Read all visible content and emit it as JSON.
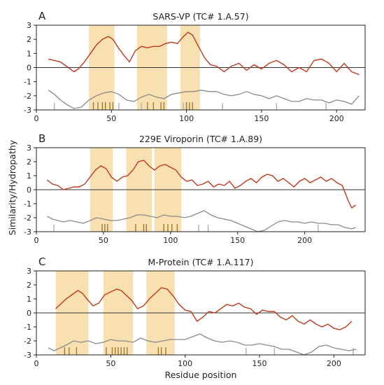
{
  "figure": {
    "ylabel": "Similarity/Hydropathy",
    "xlabel": "Residue position"
  },
  "chart_data": [
    {
      "type": "line",
      "panel_label": "A",
      "title": "SARS-VP (TC# 1.A.57)",
      "xlim": [
        0,
        219
      ],
      "ylim": [
        -3,
        3
      ],
      "xticks": [
        0,
        50,
        100,
        150,
        200
      ],
      "yticks": [
        -3,
        -2,
        -1,
        0,
        1,
        2,
        3
      ],
      "highlight_regions": [
        [
          35,
          52
        ],
        [
          67,
          87
        ],
        [
          96,
          109
        ]
      ],
      "colors": {
        "hydropathy": "#c0391b",
        "similarity": "#8a8a8a",
        "highlight": "#f8e0b0",
        "tm_marks": "#a07a30",
        "marks": "#b0b0b0"
      },
      "hydropathy_points": [
        [
          8,
          0.6
        ],
        [
          12,
          0.5
        ],
        [
          16,
          0.4
        ],
        [
          20,
          0.1
        ],
        [
          25,
          -0.3
        ],
        [
          28,
          -0.1
        ],
        [
          32,
          0.4
        ],
        [
          36,
          1.0
        ],
        [
          40,
          1.6
        ],
        [
          44,
          2.0
        ],
        [
          48,
          2.2
        ],
        [
          51,
          2.0
        ],
        [
          54,
          1.5
        ],
        [
          58,
          0.9
        ],
        [
          62,
          0.4
        ],
        [
          66,
          1.2
        ],
        [
          70,
          1.5
        ],
        [
          74,
          1.4
        ],
        [
          78,
          1.5
        ],
        [
          82,
          1.5
        ],
        [
          86,
          1.7
        ],
        [
          90,
          1.8
        ],
        [
          94,
          1.7
        ],
        [
          98,
          2.2
        ],
        [
          101,
          2.5
        ],
        [
          104,
          2.3
        ],
        [
          108,
          1.5
        ],
        [
          112,
          0.7
        ],
        [
          116,
          0.2
        ],
        [
          120,
          0.1
        ],
        [
          125,
          -0.3
        ],
        [
          130,
          0.1
        ],
        [
          135,
          0.3
        ],
        [
          140,
          -0.2
        ],
        [
          145,
          0.2
        ],
        [
          150,
          -0.1
        ],
        [
          155,
          0.3
        ],
        [
          160,
          0.5
        ],
        [
          165,
          0.2
        ],
        [
          170,
          -0.3
        ],
        [
          175,
          0.0
        ],
        [
          180,
          -0.3
        ],
        [
          185,
          0.5
        ],
        [
          190,
          0.6
        ],
        [
          195,
          0.3
        ],
        [
          200,
          -0.3
        ],
        [
          205,
          0.3
        ],
        [
          210,
          -0.3
        ],
        [
          215,
          -0.5
        ]
      ],
      "similarity_points": [
        [
          8,
          -1.6
        ],
        [
          12,
          -1.9
        ],
        [
          16,
          -2.3
        ],
        [
          20,
          -2.6
        ],
        [
          25,
          -2.9
        ],
        [
          30,
          -2.8
        ],
        [
          35,
          -2.3
        ],
        [
          40,
          -2.0
        ],
        [
          45,
          -1.8
        ],
        [
          50,
          -1.7
        ],
        [
          55,
          -1.9
        ],
        [
          60,
          -2.3
        ],
        [
          65,
          -2.4
        ],
        [
          70,
          -2.1
        ],
        [
          75,
          -1.9
        ],
        [
          80,
          -2.1
        ],
        [
          85,
          -2.2
        ],
        [
          90,
          -1.9
        ],
        [
          95,
          -1.8
        ],
        [
          100,
          -1.7
        ],
        [
          105,
          -1.7
        ],
        [
          110,
          -1.6
        ],
        [
          115,
          -1.7
        ],
        [
          120,
          -1.7
        ],
        [
          125,
          -1.9
        ],
        [
          130,
          -2.0
        ],
        [
          135,
          -1.9
        ],
        [
          140,
          -1.7
        ],
        [
          145,
          -1.9
        ],
        [
          150,
          -2.0
        ],
        [
          155,
          -2.2
        ],
        [
          160,
          -2.0
        ],
        [
          165,
          -2.2
        ],
        [
          170,
          -2.4
        ],
        [
          175,
          -2.4
        ],
        [
          180,
          -2.2
        ],
        [
          185,
          -2.3
        ],
        [
          190,
          -2.3
        ],
        [
          195,
          -2.5
        ],
        [
          200,
          -2.3
        ],
        [
          205,
          -2.4
        ],
        [
          210,
          -2.6
        ],
        [
          215,
          -2.0
        ]
      ],
      "tm_marks": [
        38,
        41,
        44,
        46,
        49,
        51,
        74,
        78,
        83,
        85,
        100,
        102,
        104
      ],
      "marks": [
        12,
        55,
        70,
        98,
        124,
        160,
        193
      ]
    },
    {
      "type": "line",
      "panel_label": "B",
      "title": "229E Viroporin (TC# 1.A.89)",
      "xlim": [
        0,
        245
      ],
      "ylim": [
        -3,
        3
      ],
      "xticks": [
        0,
        50,
        100,
        150,
        200
      ],
      "yticks": [
        -3,
        -2,
        -1,
        0,
        1,
        2,
        3
      ],
      "highlight_regions": [
        [
          40,
          57
        ],
        [
          67,
          86
        ],
        [
          88,
          108
        ]
      ],
      "colors": {
        "hydropathy": "#c0391b",
        "similarity": "#8a8a8a",
        "highlight": "#f8e0b0",
        "tm_marks": "#a07a30",
        "marks": "#b0b0b0"
      },
      "hydropathy_points": [
        [
          8,
          0.7
        ],
        [
          12,
          0.4
        ],
        [
          16,
          0.3
        ],
        [
          20,
          0.0
        ],
        [
          24,
          0.1
        ],
        [
          28,
          0.2
        ],
        [
          32,
          0.2
        ],
        [
          36,
          0.4
        ],
        [
          40,
          0.9
        ],
        [
          44,
          1.4
        ],
        [
          48,
          1.7
        ],
        [
          52,
          1.5
        ],
        [
          56,
          0.9
        ],
        [
          60,
          0.6
        ],
        [
          64,
          0.9
        ],
        [
          68,
          1.0
        ],
        [
          72,
          1.4
        ],
        [
          76,
          2.0
        ],
        [
          80,
          2.1
        ],
        [
          84,
          1.7
        ],
        [
          88,
          1.4
        ],
        [
          92,
          1.7
        ],
        [
          96,
          1.8
        ],
        [
          100,
          1.6
        ],
        [
          104,
          1.4
        ],
        [
          108,
          0.9
        ],
        [
          112,
          0.6
        ],
        [
          116,
          0.7
        ],
        [
          120,
          0.3
        ],
        [
          124,
          0.4
        ],
        [
          128,
          0.6
        ],
        [
          132,
          0.2
        ],
        [
          136,
          0.4
        ],
        [
          140,
          0.3
        ],
        [
          144,
          0.6
        ],
        [
          148,
          0.1
        ],
        [
          152,
          0.3
        ],
        [
          156,
          0.6
        ],
        [
          160,
          0.8
        ],
        [
          164,
          0.5
        ],
        [
          168,
          0.9
        ],
        [
          172,
          1.1
        ],
        [
          176,
          1.0
        ],
        [
          180,
          0.6
        ],
        [
          184,
          0.8
        ],
        [
          188,
          0.5
        ],
        [
          192,
          0.2
        ],
        [
          196,
          0.6
        ],
        [
          200,
          0.8
        ],
        [
          204,
          0.5
        ],
        [
          208,
          0.7
        ],
        [
          212,
          0.9
        ],
        [
          216,
          0.6
        ],
        [
          220,
          0.8
        ],
        [
          224,
          0.5
        ],
        [
          228,
          0.3
        ],
        [
          232,
          -0.7
        ],
        [
          235,
          -1.3
        ],
        [
          238,
          -1.1
        ]
      ],
      "similarity_points": [
        [
          8,
          -1.9
        ],
        [
          12,
          -2.1
        ],
        [
          16,
          -2.2
        ],
        [
          20,
          -2.3
        ],
        [
          25,
          -2.2
        ],
        [
          30,
          -2.3
        ],
        [
          35,
          -2.4
        ],
        [
          40,
          -2.2
        ],
        [
          45,
          -2.0
        ],
        [
          50,
          -2.1
        ],
        [
          55,
          -2.2
        ],
        [
          60,
          -2.2
        ],
        [
          65,
          -2.1
        ],
        [
          70,
          -2.0
        ],
        [
          75,
          -1.8
        ],
        [
          80,
          -1.8
        ],
        [
          85,
          -1.9
        ],
        [
          90,
          -2.0
        ],
        [
          95,
          -1.8
        ],
        [
          100,
          -1.9
        ],
        [
          105,
          -1.9
        ],
        [
          110,
          -2.0
        ],
        [
          115,
          -1.9
        ],
        [
          120,
          -1.7
        ],
        [
          125,
          -1.5
        ],
        [
          130,
          -1.8
        ],
        [
          135,
          -2.0
        ],
        [
          140,
          -2.1
        ],
        [
          145,
          -2.2
        ],
        [
          150,
          -2.4
        ],
        [
          155,
          -2.6
        ],
        [
          160,
          -2.8
        ],
        [
          165,
          -3.0
        ],
        [
          170,
          -2.9
        ],
        [
          175,
          -2.6
        ],
        [
          180,
          -2.3
        ],
        [
          185,
          -2.2
        ],
        [
          190,
          -2.3
        ],
        [
          195,
          -2.3
        ],
        [
          200,
          -2.4
        ],
        [
          205,
          -2.3
        ],
        [
          210,
          -2.4
        ],
        [
          215,
          -2.4
        ],
        [
          220,
          -2.5
        ],
        [
          225,
          -2.5
        ],
        [
          230,
          -2.7
        ],
        [
          235,
          -2.8
        ],
        [
          238,
          -2.7
        ]
      ],
      "tm_marks": [
        49,
        51,
        53,
        74,
        80,
        82,
        95,
        98,
        101,
        105
      ],
      "marks": [
        13,
        121,
        128,
        210
      ]
    },
    {
      "type": "line",
      "panel_label": "C",
      "title": "M-Protein (TC# 1.A.117)",
      "xlim": [
        0,
        221
      ],
      "ylim": [
        -3,
        3
      ],
      "xticks": [
        0,
        50,
        100,
        150,
        200
      ],
      "yticks": [
        -3,
        -2,
        -1,
        0,
        1,
        2,
        3
      ],
      "highlight_regions": [
        [
          13,
          35
        ],
        [
          45,
          65
        ],
        [
          74,
          93
        ]
      ],
      "colors": {
        "hydropathy": "#c0391b",
        "similarity": "#8a8a8a",
        "highlight": "#f8e0b0",
        "tm_marks": "#a07a30",
        "marks": "#b0b0b0"
      },
      "hydropathy_points": [
        [
          13,
          0.3
        ],
        [
          16,
          0.6
        ],
        [
          20,
          1.0
        ],
        [
          24,
          1.3
        ],
        [
          28,
          1.6
        ],
        [
          31,
          1.4
        ],
        [
          34,
          1.0
        ],
        [
          38,
          0.5
        ],
        [
          42,
          0.7
        ],
        [
          46,
          1.3
        ],
        [
          50,
          1.5
        ],
        [
          54,
          1.7
        ],
        [
          57,
          1.6
        ],
        [
          60,
          1.3
        ],
        [
          64,
          0.9
        ],
        [
          68,
          0.3
        ],
        [
          72,
          0.5
        ],
        [
          76,
          1.0
        ],
        [
          80,
          1.4
        ],
        [
          84,
          1.8
        ],
        [
          88,
          1.7
        ],
        [
          92,
          1.2
        ],
        [
          96,
          0.6
        ],
        [
          100,
          0.2
        ],
        [
          104,
          0.1
        ],
        [
          108,
          -0.6
        ],
        [
          112,
          -0.3
        ],
        [
          116,
          0.1
        ],
        [
          120,
          0.0
        ],
        [
          124,
          0.3
        ],
        [
          128,
          0.6
        ],
        [
          132,
          0.5
        ],
        [
          136,
          0.7
        ],
        [
          140,
          0.4
        ],
        [
          144,
          0.3
        ],
        [
          148,
          -0.1
        ],
        [
          152,
          0.2
        ],
        [
          156,
          0.1
        ],
        [
          160,
          0.1
        ],
        [
          164,
          -0.3
        ],
        [
          168,
          -0.5
        ],
        [
          172,
          -0.2
        ],
        [
          176,
          -0.6
        ],
        [
          180,
          -0.8
        ],
        [
          184,
          -0.5
        ],
        [
          188,
          -0.8
        ],
        [
          192,
          -1.0
        ],
        [
          196,
          -0.8
        ],
        [
          200,
          -1.1
        ],
        [
          204,
          -1.2
        ],
        [
          208,
          -1.0
        ],
        [
          212,
          -0.6
        ]
      ],
      "similarity_points": [
        [
          8,
          -2.5
        ],
        [
          12,
          -2.7
        ],
        [
          16,
          -2.5
        ],
        [
          20,
          -2.3
        ],
        [
          25,
          -2.0
        ],
        [
          30,
          -2.1
        ],
        [
          35,
          -2.0
        ],
        [
          40,
          -2.2
        ],
        [
          45,
          -2.1
        ],
        [
          50,
          -1.9
        ],
        [
          55,
          -2.0
        ],
        [
          60,
          -2.0
        ],
        [
          65,
          -2.1
        ],
        [
          70,
          -1.8
        ],
        [
          75,
          -2.0
        ],
        [
          80,
          -2.1
        ],
        [
          85,
          -2.0
        ],
        [
          90,
          -1.9
        ],
        [
          95,
          -1.9
        ],
        [
          100,
          -1.9
        ],
        [
          105,
          -1.7
        ],
        [
          110,
          -1.5
        ],
        [
          115,
          -1.8
        ],
        [
          120,
          -2.0
        ],
        [
          125,
          -2.1
        ],
        [
          130,
          -2.0
        ],
        [
          135,
          -2.1
        ],
        [
          140,
          -2.3
        ],
        [
          145,
          -2.3
        ],
        [
          150,
          -2.2
        ],
        [
          155,
          -2.3
        ],
        [
          160,
          -2.4
        ],
        [
          165,
          -2.6
        ],
        [
          170,
          -2.6
        ],
        [
          175,
          -2.8
        ],
        [
          180,
          -3.0
        ],
        [
          185,
          -2.8
        ],
        [
          190,
          -2.4
        ],
        [
          195,
          -2.3
        ],
        [
          200,
          -2.5
        ],
        [
          205,
          -2.6
        ],
        [
          210,
          -2.7
        ],
        [
          215,
          -2.6
        ]
      ],
      "tm_marks": [
        19,
        22,
        27,
        47,
        51,
        53,
        55,
        57,
        59,
        61,
        82,
        84,
        87
      ],
      "marks": [
        141,
        160,
        213
      ]
    }
  ]
}
